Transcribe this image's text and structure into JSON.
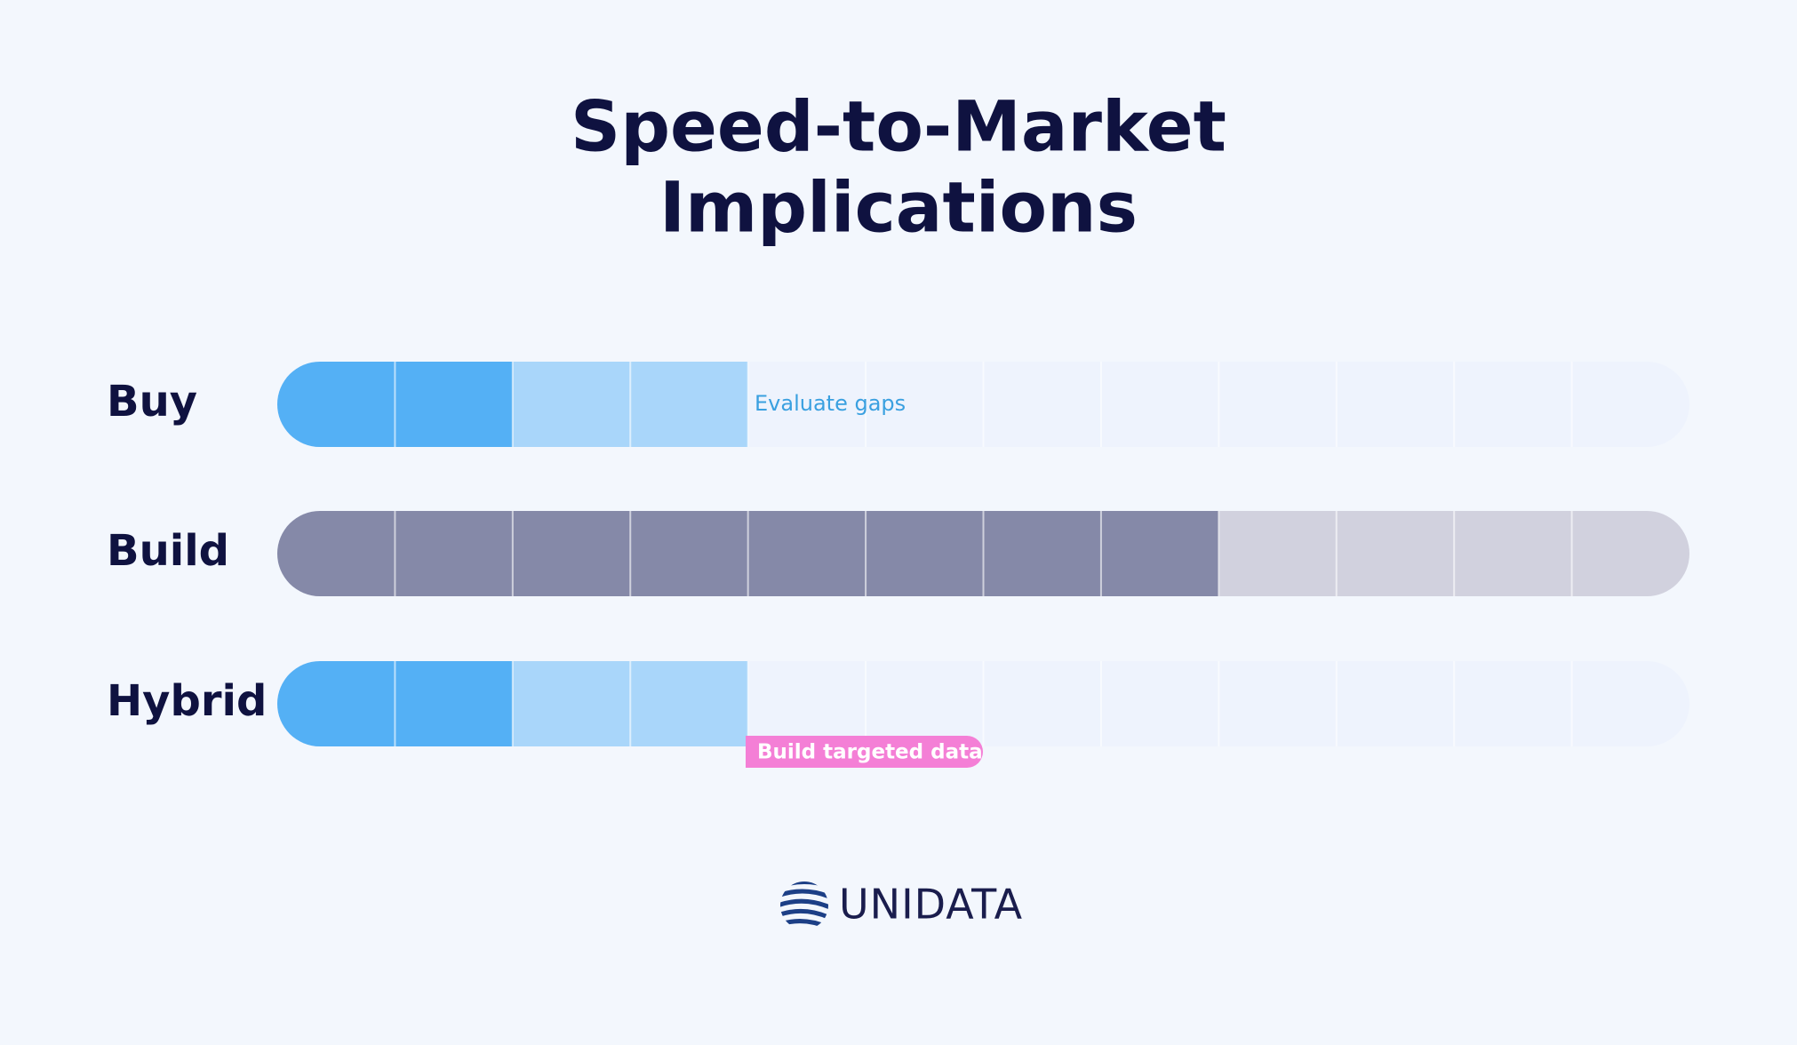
{
  "header": {
    "title_lines": [
      "Speed-to-Market",
      "Implications"
    ]
  },
  "rows": [
    {
      "label": "Buy",
      "note": "Evaluate gaps"
    },
    {
      "label": "Build"
    },
    {
      "label": "Hybrid",
      "tag": "Build targeted data"
    }
  ],
  "footer": {
    "brand": "UNIDATA"
  }
}
